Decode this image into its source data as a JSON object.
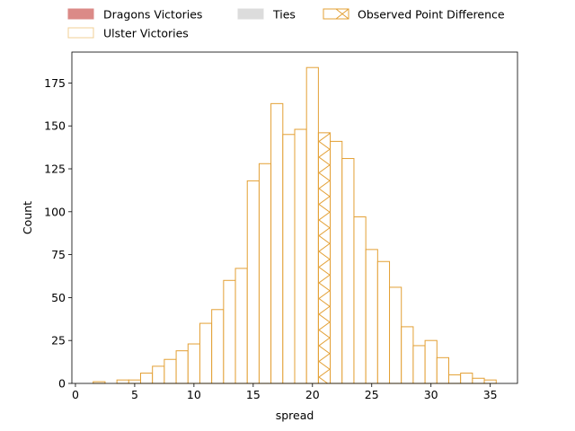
{
  "chart_data": {
    "type": "bar",
    "title": "",
    "xlabel": "spread",
    "ylabel": "Count",
    "xlim": [
      -0.3,
      37.3
    ],
    "ylim": [
      0,
      193
    ],
    "xticks": [
      0,
      5,
      10,
      15,
      20,
      25,
      30,
      35
    ],
    "yticks": [
      0,
      25,
      50,
      75,
      100,
      125,
      150,
      175
    ],
    "grid": false,
    "legend_position": "top",
    "legend": [
      {
        "label": "Dragons Victories",
        "swatch": "solid",
        "color": "#db8a87"
      },
      {
        "label": "Ulster Victories",
        "swatch": "outline",
        "color": "#f0cf94"
      },
      {
        "label": "Ties",
        "swatch": "solid",
        "color": "#dcdcdc"
      },
      {
        "label": "Observed Point Difference",
        "swatch": "hatched",
        "color": "#e3a035"
      }
    ],
    "bar_color": "#e3a035",
    "bin_width": 1,
    "bins": [
      {
        "x0": 1.5,
        "count": 1
      },
      {
        "x0": 2.5,
        "count": 0
      },
      {
        "x0": 3.5,
        "count": 2
      },
      {
        "x0": 4.5,
        "count": 2
      },
      {
        "x0": 5.5,
        "count": 6
      },
      {
        "x0": 6.5,
        "count": 10
      },
      {
        "x0": 7.5,
        "count": 14
      },
      {
        "x0": 8.5,
        "count": 19
      },
      {
        "x0": 9.5,
        "count": 23
      },
      {
        "x0": 10.5,
        "count": 35
      },
      {
        "x0": 11.5,
        "count": 43
      },
      {
        "x0": 12.5,
        "count": 60
      },
      {
        "x0": 13.5,
        "count": 67
      },
      {
        "x0": 14.5,
        "count": 118
      },
      {
        "x0": 15.5,
        "count": 128
      },
      {
        "x0": 16.5,
        "count": 163
      },
      {
        "x0": 17.5,
        "count": 145
      },
      {
        "x0": 18.5,
        "count": 148
      },
      {
        "x0": 19.5,
        "count": 184
      },
      {
        "x0": 20.5,
        "count": 146,
        "observed": true
      },
      {
        "x0": 21.5,
        "count": 141
      },
      {
        "x0": 22.5,
        "count": 131
      },
      {
        "x0": 23.5,
        "count": 97
      },
      {
        "x0": 24.5,
        "count": 78
      },
      {
        "x0": 25.5,
        "count": 71
      },
      {
        "x0": 26.5,
        "count": 56
      },
      {
        "x0": 27.5,
        "count": 33
      },
      {
        "x0": 28.5,
        "count": 22
      },
      {
        "x0": 29.5,
        "count": 25
      },
      {
        "x0": 30.5,
        "count": 15
      },
      {
        "x0": 31.5,
        "count": 5
      },
      {
        "x0": 32.5,
        "count": 6
      },
      {
        "x0": 33.5,
        "count": 3
      },
      {
        "x0": 34.5,
        "count": 2
      }
    ]
  }
}
